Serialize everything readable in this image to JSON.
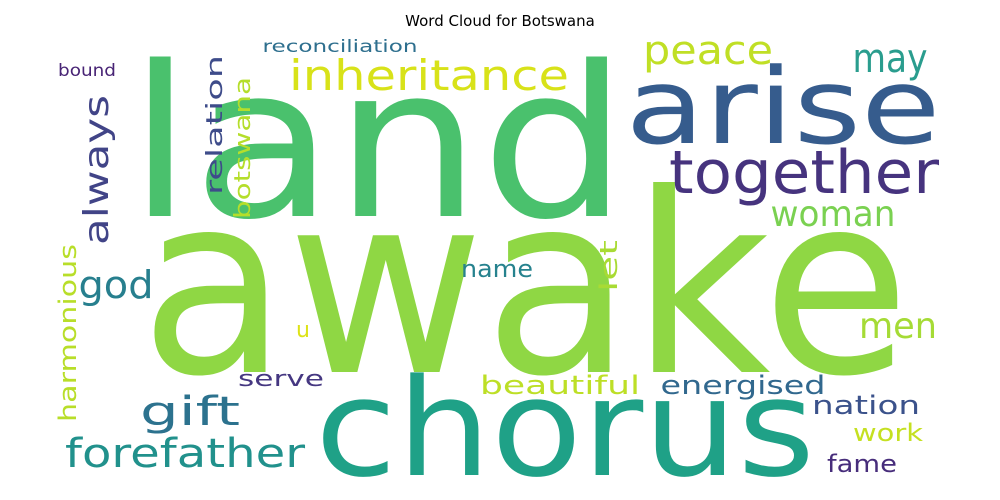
{
  "title": "Word Cloud for Botswana",
  "words": [
    {
      "text": "awake",
      "color": "#8fd744"
    },
    {
      "text": "land",
      "color": "#4ac16d"
    },
    {
      "text": "chorus",
      "color": "#1fa187"
    },
    {
      "text": "arise",
      "color": "#365c8d"
    },
    {
      "text": "together",
      "color": "#46337e"
    },
    {
      "text": "inheritance",
      "color": "#d8e219"
    },
    {
      "text": "peace",
      "color": "#c0df25"
    },
    {
      "text": "may",
      "color": "#2a9d8e"
    },
    {
      "text": "woman",
      "color": "#7ad151"
    },
    {
      "text": "always",
      "color": "#414487"
    },
    {
      "text": "god",
      "color": "#277f8e"
    },
    {
      "text": "men",
      "color": "#a5db36"
    },
    {
      "text": "gift",
      "color": "#2c728e"
    },
    {
      "text": "forefather",
      "color": "#21918c"
    },
    {
      "text": "energised",
      "color": "#31688e"
    },
    {
      "text": "nation",
      "color": "#3b528b"
    },
    {
      "text": "beautiful",
      "color": "#bddf26"
    },
    {
      "text": "work",
      "color": "#c5e021"
    },
    {
      "text": "fame",
      "color": "#472d7b"
    },
    {
      "text": "name",
      "color": "#26828e"
    },
    {
      "text": "serve",
      "color": "#453781"
    },
    {
      "text": "let",
      "color": "#a8db34"
    },
    {
      "text": "u",
      "color": "#dde318"
    },
    {
      "text": "relation",
      "color": "#3e4c8a"
    },
    {
      "text": "botswana",
      "color": "#b5de2b"
    },
    {
      "text": "harmonious",
      "color": "#b8de29"
    },
    {
      "text": "reconciliation",
      "color": "#2e6f8e"
    },
    {
      "text": "bound",
      "color": "#482475"
    }
  ]
}
